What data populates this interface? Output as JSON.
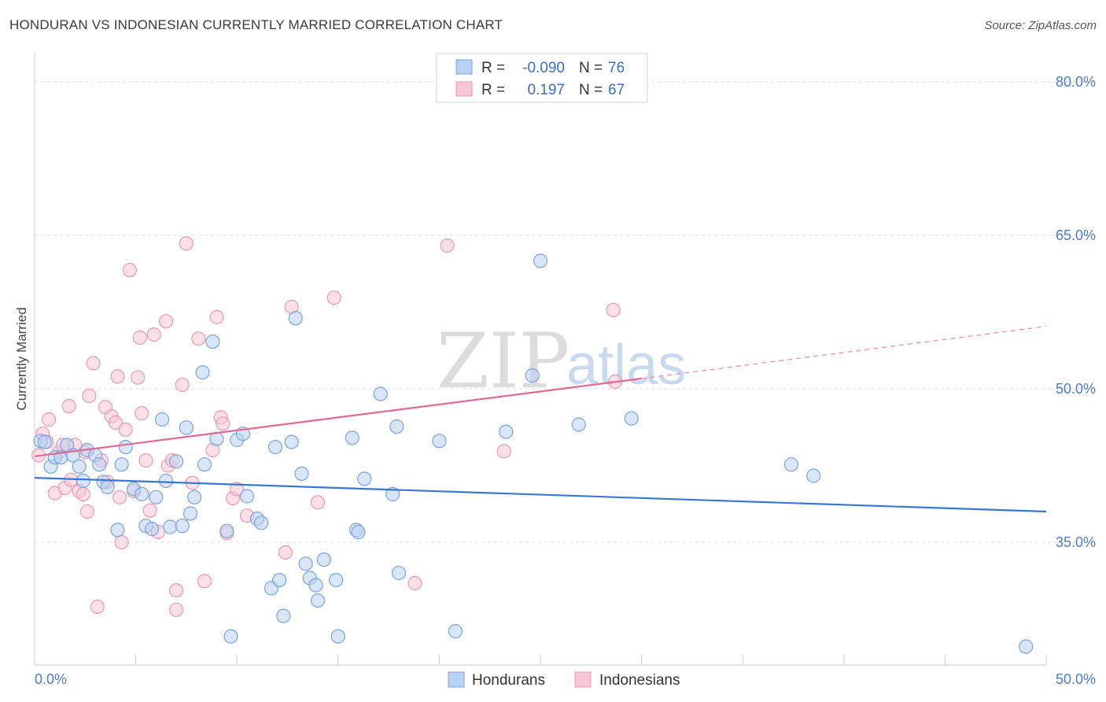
{
  "title": "HONDURAN VS INDONESIAN CURRENTLY MARRIED CORRELATION CHART",
  "source": "Source: ZipAtlas.com",
  "watermark": {
    "zip": "ZIP",
    "atlas": "atlas"
  },
  "colors": {
    "hondurans_fill": "#b9d1f3",
    "hondurans_stroke": "#7aa3dc",
    "hondurans_line": "#3a78d0",
    "indonesians_fill": "#f8c7d6",
    "indonesians_stroke": "#e99ab3",
    "indonesians_line": "#e06a92",
    "grid": "#dddddd",
    "tick_text": "#4a7cc7"
  },
  "stats": [
    {
      "r_label": "R =",
      "r_value": "-0.090",
      "n_label": "N =",
      "n_value": "76"
    },
    {
      "r_label": "R =",
      "r_value": "0.197",
      "n_label": "N =",
      "n_value": "67"
    }
  ],
  "legend": [
    "Hondurans",
    "Indonesians"
  ],
  "chart_data": {
    "type": "scatter",
    "title": "HONDURAN VS INDONESIAN CURRENTLY MARRIED CORRELATION CHART",
    "xlabel": "",
    "ylabel": "Currently Married",
    "xlim": [
      0,
      50
    ],
    "ylim": [
      23,
      82
    ],
    "x_tick_labels": [
      "0.0%",
      "50.0%"
    ],
    "y_ticks": [
      35,
      50,
      65,
      80
    ],
    "y_tick_labels": [
      "35.0%",
      "50.0%",
      "65.0%",
      "80.0%"
    ],
    "grid": true,
    "series": [
      {
        "name": "Hondurans",
        "trend": {
          "x0": 0,
          "y0": 41.3,
          "x1": 50,
          "y1": 38.0,
          "dashed_from": null
        },
        "points": [
          [
            0.3,
            44.9
          ],
          [
            0.5,
            44.8
          ],
          [
            0.8,
            42.4
          ],
          [
            1.0,
            43.3
          ],
          [
            1.3,
            43.3
          ],
          [
            1.6,
            44.5
          ],
          [
            1.9,
            43.5
          ],
          [
            2.2,
            42.4
          ],
          [
            2.4,
            41.0
          ],
          [
            2.6,
            44.0
          ],
          [
            3.0,
            43.5
          ],
          [
            3.2,
            42.6
          ],
          [
            3.4,
            40.9
          ],
          [
            3.6,
            40.4
          ],
          [
            4.1,
            36.2
          ],
          [
            4.3,
            42.6
          ],
          [
            4.5,
            44.3
          ],
          [
            4.9,
            40.2
          ],
          [
            5.3,
            39.7
          ],
          [
            5.5,
            36.6
          ],
          [
            5.8,
            36.3
          ],
          [
            6.0,
            39.4
          ],
          [
            6.3,
            47.0
          ],
          [
            6.5,
            41.0
          ],
          [
            6.7,
            36.5
          ],
          [
            7.0,
            42.9
          ],
          [
            7.3,
            36.6
          ],
          [
            7.5,
            46.2
          ],
          [
            7.7,
            37.8
          ],
          [
            7.9,
            39.4
          ],
          [
            8.3,
            51.6
          ],
          [
            8.4,
            42.6
          ],
          [
            8.8,
            54.6
          ],
          [
            9.0,
            45.1
          ],
          [
            9.5,
            36.1
          ],
          [
            9.7,
            25.8
          ],
          [
            10.0,
            45.0
          ],
          [
            10.3,
            45.6
          ],
          [
            10.5,
            39.5
          ],
          [
            11.0,
            37.3
          ],
          [
            11.2,
            36.9
          ],
          [
            11.7,
            30.5
          ],
          [
            11.9,
            44.3
          ],
          [
            12.1,
            31.3
          ],
          [
            12.3,
            27.8
          ],
          [
            12.7,
            44.8
          ],
          [
            12.9,
            56.9
          ],
          [
            13.2,
            41.7
          ],
          [
            13.4,
            32.9
          ],
          [
            13.6,
            31.5
          ],
          [
            13.9,
            30.8
          ],
          [
            14.0,
            29.3
          ],
          [
            14.3,
            33.3
          ],
          [
            14.9,
            31.3
          ],
          [
            15.0,
            25.8
          ],
          [
            15.7,
            45.2
          ],
          [
            15.9,
            36.2
          ],
          [
            16.0,
            36.0
          ],
          [
            16.3,
            41.2
          ],
          [
            17.1,
            49.5
          ],
          [
            17.7,
            39.7
          ],
          [
            17.9,
            46.3
          ],
          [
            18.0,
            32.0
          ],
          [
            20.0,
            44.9
          ],
          [
            20.8,
            26.3
          ],
          [
            23.3,
            45.8
          ],
          [
            24.6,
            51.3
          ],
          [
            25.0,
            62.5
          ],
          [
            26.9,
            46.5
          ],
          [
            29.5,
            47.1
          ],
          [
            37.4,
            42.6
          ],
          [
            38.5,
            41.5
          ],
          [
            49.0,
            24.8
          ]
        ]
      },
      {
        "name": "Indonesians",
        "trend": {
          "x0": 0,
          "y0": 43.4,
          "x1": 30,
          "y1": 51.0,
          "dashed_from": 30,
          "x2": 50,
          "y2": 56.1
        },
        "points": [
          [
            0.2,
            43.5
          ],
          [
            0.4,
            45.6
          ],
          [
            0.6,
            44.8
          ],
          [
            0.7,
            47.0
          ],
          [
            1.0,
            39.8
          ],
          [
            1.2,
            43.8
          ],
          [
            1.4,
            44.5
          ],
          [
            1.5,
            40.3
          ],
          [
            1.7,
            48.3
          ],
          [
            1.8,
            41.1
          ],
          [
            2.0,
            44.5
          ],
          [
            2.2,
            40.0
          ],
          [
            2.4,
            39.7
          ],
          [
            2.5,
            43.8
          ],
          [
            2.6,
            38.0
          ],
          [
            2.7,
            49.3
          ],
          [
            2.9,
            52.5
          ],
          [
            3.1,
            28.7
          ],
          [
            3.3,
            43.0
          ],
          [
            3.5,
            48.2
          ],
          [
            3.6,
            40.9
          ],
          [
            3.8,
            47.3
          ],
          [
            4.0,
            46.7
          ],
          [
            4.1,
            51.2
          ],
          [
            4.2,
            39.4
          ],
          [
            4.3,
            35.0
          ],
          [
            4.5,
            46.0
          ],
          [
            4.7,
            61.6
          ],
          [
            4.9,
            40.0
          ],
          [
            5.1,
            51.1
          ],
          [
            5.2,
            55.0
          ],
          [
            5.3,
            47.6
          ],
          [
            5.5,
            43.0
          ],
          [
            5.7,
            38.1
          ],
          [
            5.9,
            55.3
          ],
          [
            6.1,
            36.0
          ],
          [
            6.5,
            56.6
          ],
          [
            6.6,
            42.5
          ],
          [
            6.8,
            43.0
          ],
          [
            7.0,
            30.3
          ],
          [
            7.0,
            28.4
          ],
          [
            7.3,
            50.4
          ],
          [
            7.5,
            64.2
          ],
          [
            7.8,
            40.8
          ],
          [
            8.1,
            54.9
          ],
          [
            8.4,
            31.2
          ],
          [
            8.8,
            44.0
          ],
          [
            9.0,
            57.0
          ],
          [
            9.2,
            47.2
          ],
          [
            9.3,
            46.6
          ],
          [
            9.5,
            35.9
          ],
          [
            9.8,
            39.3
          ],
          [
            10.0,
            40.2
          ],
          [
            10.5,
            37.6
          ],
          [
            12.4,
            34.0
          ],
          [
            12.7,
            58.0
          ],
          [
            14.0,
            38.9
          ],
          [
            14.8,
            58.9
          ],
          [
            18.8,
            31.0
          ],
          [
            20.4,
            64.0
          ],
          [
            23.2,
            43.9
          ],
          [
            28.6,
            57.7
          ],
          [
            28.7,
            50.7
          ]
        ]
      }
    ]
  }
}
